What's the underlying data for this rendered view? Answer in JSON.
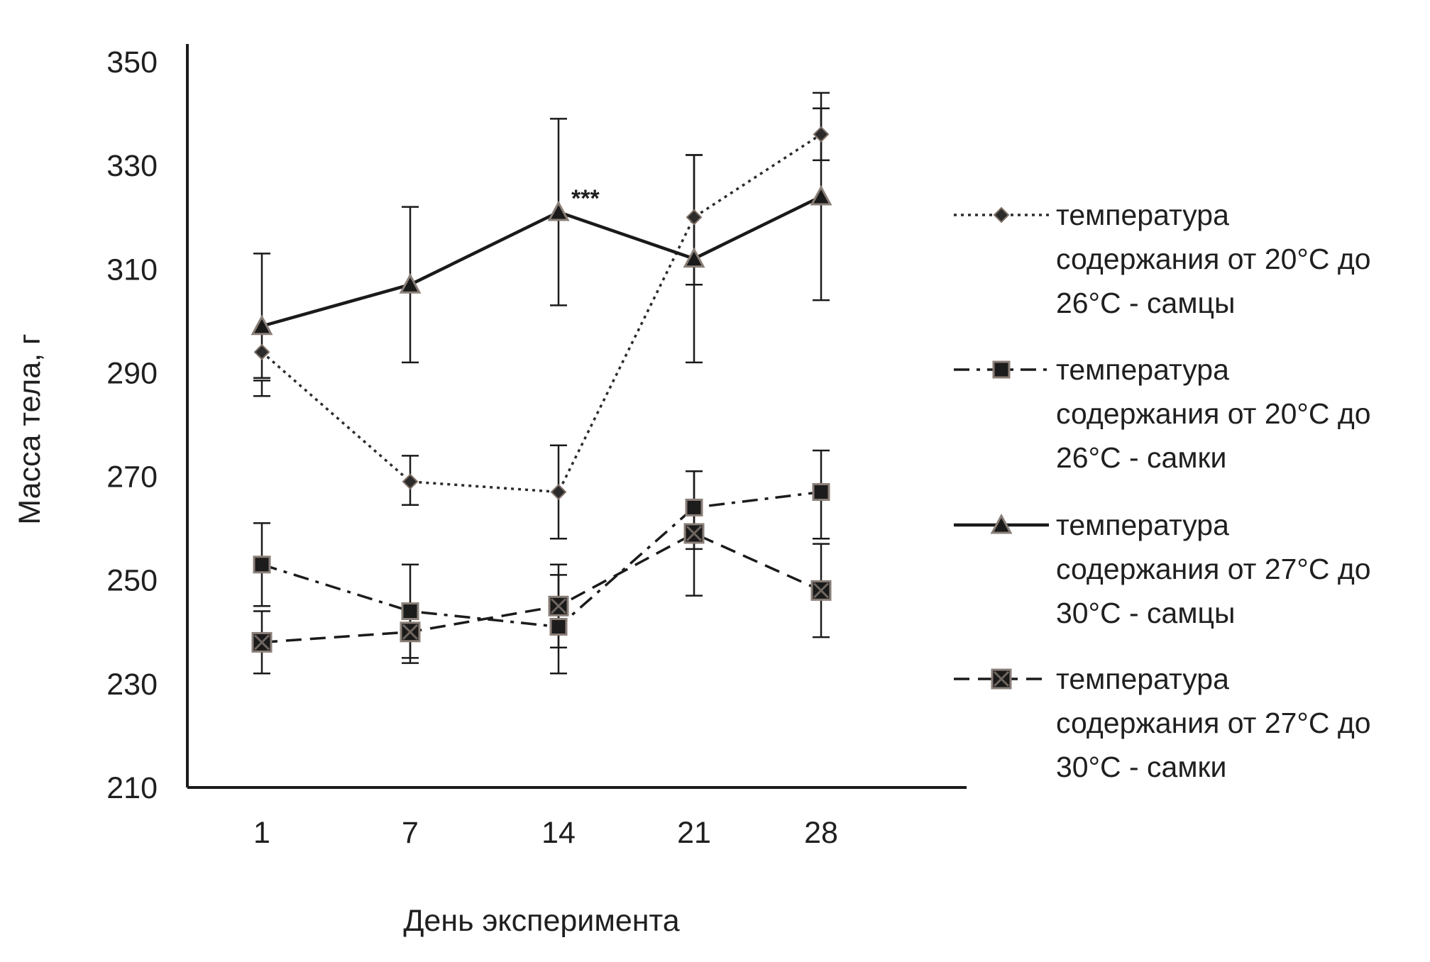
{
  "chart_data": {
    "type": "line",
    "xlabel": "День эксперимента",
    "ylabel": "Масса тела, г",
    "categories": [
      "1",
      "7",
      "14",
      "21",
      "28"
    ],
    "ylim": [
      210,
      350
    ],
    "yticks": [
      210,
      230,
      250,
      270,
      290,
      310,
      330,
      350
    ],
    "grid": false,
    "legend_position": "right",
    "annotations": [
      {
        "text": "***",
        "category": "14",
        "series": 2
      }
    ],
    "series": [
      {
        "name_lines": [
          "температура",
          "содержания от 20°C до",
          "26°C - самцы"
        ],
        "values": [
          294,
          269,
          267,
          320,
          336
        ],
        "err_low": [
          285.5,
          264.5,
          258,
          307,
          331
        ],
        "err_high": [
          288.5,
          274,
          276,
          332,
          341
        ],
        "line_style": "dotted",
        "marker": "diamond",
        "color": "#2b2b2b"
      },
      {
        "name_lines": [
          "температура",
          "содержания от 20°C до",
          "26°C - самки"
        ],
        "values": [
          253,
          244,
          241,
          264,
          267
        ],
        "err_low": [
          245,
          234,
          232,
          256,
          258
        ],
        "err_high": [
          261,
          253,
          251,
          271,
          275
        ],
        "line_style": "dash-dot",
        "marker": "square",
        "color": "#1c1c1c"
      },
      {
        "name_lines": [
          "температура",
          "содержания от 27°C до",
          "30°C - самцы"
        ],
        "values": [
          299,
          307,
          321,
          312,
          324
        ],
        "err_low": [
          289,
          292,
          303,
          292,
          304
        ],
        "err_high": [
          313,
          322,
          339,
          332,
          344
        ],
        "line_style": "solid",
        "marker": "triangle",
        "color": "#1a1a1a"
      },
      {
        "name_lines": [
          "температура",
          "содержания от 27°C до",
          "30°C - самки"
        ],
        "values": [
          238,
          240,
          245,
          259,
          248
        ],
        "err_low": [
          232,
          235,
          237,
          247,
          239
        ],
        "err_high": [
          244,
          245,
          253,
          271,
          257
        ],
        "line_style": "dashed",
        "marker": "x-square",
        "color": "#1a1a1a"
      }
    ]
  }
}
